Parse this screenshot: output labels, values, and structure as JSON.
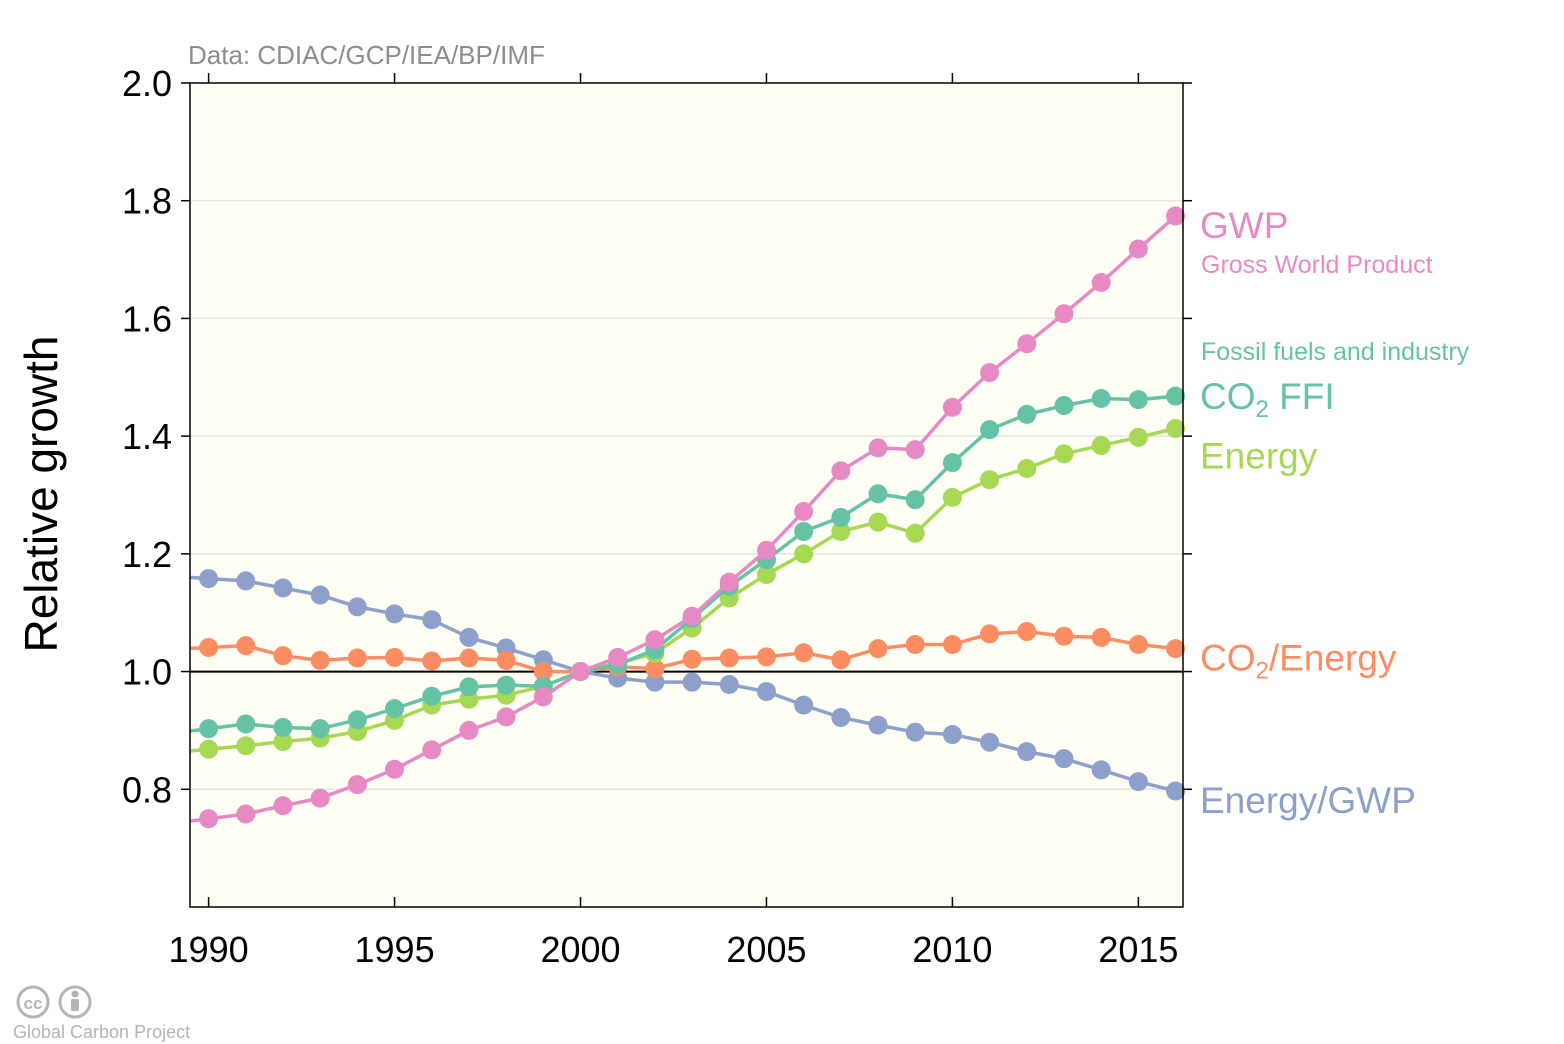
{
  "chart_data": {
    "type": "line",
    "source_note": "Data: CDIAC/GCP/IEA/BP/IMF",
    "ylabel": "Relative growth",
    "xlim": [
      1989.5,
      2016.2
    ],
    "ylim": [
      0.6,
      2.0
    ],
    "xticks": [
      1990,
      1995,
      2000,
      2005,
      2010,
      2015
    ],
    "yticks": [
      0.8,
      1.0,
      1.2,
      1.4,
      1.6,
      1.8,
      2.0
    ],
    "reference_line": 1.0,
    "x": [
      1990,
      1991,
      1992,
      1993,
      1994,
      1995,
      1996,
      1997,
      1998,
      1999,
      2000,
      2001,
      2002,
      2003,
      2004,
      2005,
      2006,
      2007,
      2008,
      2009,
      2010,
      2011,
      2012,
      2013,
      2014,
      2015,
      2016
    ],
    "series": [
      {
        "name": "GWP",
        "subtitle": "Gross World Product",
        "color": "#e78ac3",
        "values": [
          0.75,
          0.758,
          0.772,
          0.785,
          0.808,
          0.834,
          0.867,
          0.9,
          0.923,
          0.957,
          1.0,
          1.024,
          1.054,
          1.094,
          1.152,
          1.206,
          1.272,
          1.341,
          1.38,
          1.377,
          1.449,
          1.508,
          1.557,
          1.608,
          1.661,
          1.718,
          1.774
        ]
      },
      {
        "name": "CO2 FFI",
        "name_main": "CO",
        "name_sub": "2",
        "name_tail": " FFI",
        "subtitle": "Fossil fuels and industry",
        "color": "#66c2a5",
        "values": [
          0.903,
          0.911,
          0.905,
          0.903,
          0.918,
          0.937,
          0.958,
          0.974,
          0.977,
          0.975,
          1.0,
          1.012,
          1.037,
          1.09,
          1.145,
          1.19,
          1.238,
          1.262,
          1.302,
          1.292,
          1.355,
          1.411,
          1.437,
          1.452,
          1.464,
          1.462,
          1.468
        ]
      },
      {
        "name": "Energy",
        "color": "#a6d854",
        "values": [
          0.868,
          0.874,
          0.881,
          0.887,
          0.898,
          0.917,
          0.943,
          0.953,
          0.96,
          0.975,
          1.0,
          1.014,
          1.031,
          1.074,
          1.125,
          1.165,
          1.2,
          1.238,
          1.254,
          1.235,
          1.296,
          1.326,
          1.345,
          1.37,
          1.384,
          1.398,
          1.413
        ]
      },
      {
        "name": "CO2/Energy",
        "name_main": "CO",
        "name_sub": "2",
        "name_tail": "/Energy",
        "color": "#fc8d62",
        "values": [
          1.041,
          1.044,
          1.027,
          1.019,
          1.023,
          1.024,
          1.018,
          1.023,
          1.019,
          1.0,
          1.0,
          1.008,
          1.005,
          1.021,
          1.023,
          1.025,
          1.032,
          1.02,
          1.039,
          1.046,
          1.046,
          1.064,
          1.068,
          1.06,
          1.058,
          1.046,
          1.039
        ]
      },
      {
        "name": "Energy/GWP",
        "color": "#8da0cb",
        "values": [
          1.158,
          1.154,
          1.142,
          1.13,
          1.11,
          1.098,
          1.088,
          1.058,
          1.04,
          1.02,
          1.0,
          0.989,
          0.982,
          0.982,
          0.978,
          0.966,
          0.943,
          0.922,
          0.909,
          0.897,
          0.893,
          0.88,
          0.864,
          0.852,
          0.833,
          0.813,
          0.797
        ]
      }
    ]
  },
  "credit": {
    "text": "Global Carbon Project",
    "cc_icon_label": "cc"
  }
}
